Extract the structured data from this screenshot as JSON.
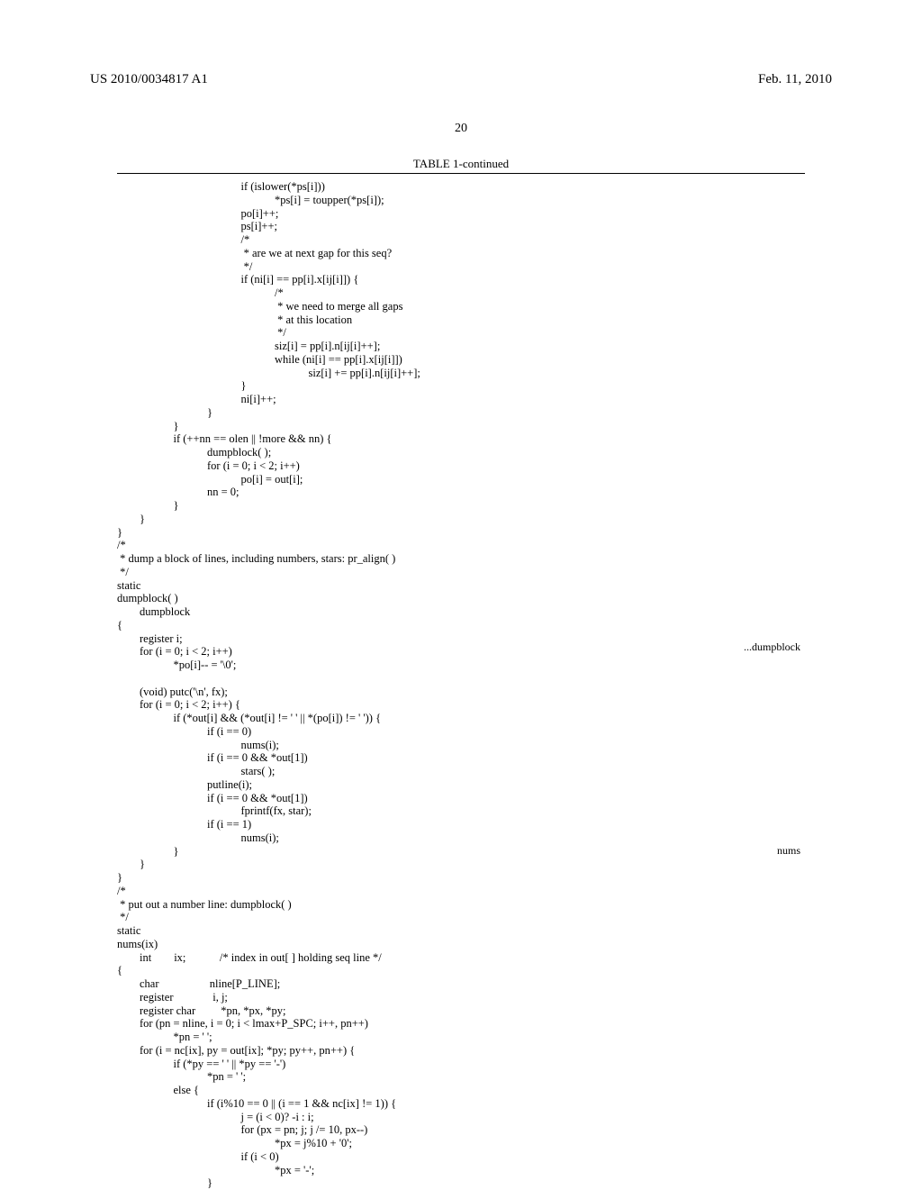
{
  "header": {
    "pub_number": "US 2010/0034817 A1",
    "pub_date": "Feb. 11, 2010"
  },
  "page_number": "20",
  "table_caption": "TABLE 1-continued",
  "side_labels": {
    "dumpblock": "...dumpblock",
    "nums": "nums"
  },
  "code": "                                            if (islower(*ps[i]))\n                                                        *ps[i] = toupper(*ps[i]);\n                                            po[i]++;\n                                            ps[i]++;\n                                            /*\n                                             * are we at next gap for this seq?\n                                             */\n                                            if (ni[i] == pp[i].x[ij[i]]) {\n                                                        /*\n                                                         * we need to merge all gaps\n                                                         * at this location\n                                                         */\n                                                        siz[i] = pp[i].n[ij[i]++];\n                                                        while (ni[i] == pp[i].x[ij[i]])\n                                                                    siz[i] += pp[i].n[ij[i]++];\n                                            }\n                                            ni[i]++;\n                                }\n                    }\n                    if (++nn == olen || !more && nn) {\n                                dumpblock( );\n                                for (i = 0; i < 2; i++)\n                                            po[i] = out[i];\n                                nn = 0;\n                    }\n        }\n}\n/*\n * dump a block of lines, including numbers, stars: pr_align( )\n */\nstatic\ndumpblock( )\n        dumpblock\n{\n        register i;\n        for (i = 0; i < 2; i++)\n                    *po[i]-- = '\\0';\n\n        (void) putc('\\n', fx);\n        for (i = 0; i < 2; i++) {\n                    if (*out[i] && (*out[i] != ' ' || *(po[i]) != ' ')) {\n                                if (i == 0)\n                                            nums(i);\n                                if (i == 0 && *out[1])\n                                            stars( );\n                                putline(i);\n                                if (i == 0 && *out[1])\n                                            fprintf(fx, star);\n                                if (i == 1)\n                                            nums(i);\n                    }\n        }\n}\n/*\n * put out a number line: dumpblock( )\n */\nstatic\nnums(ix)\n        int        ix;            /* index in out[ ] holding seq line */\n{\n        char                  nline[P_LINE];\n        register              i, j;\n        register char         *pn, *px, *py;\n        for (pn = nline, i = 0; i < lmax+P_SPC; i++, pn++)\n                    *pn = ' ';\n        for (i = nc[ix], py = out[ix]; *py; py++, pn++) {\n                    if (*py == ' ' || *py == '-')\n                                *pn = ' ';\n                    else {\n                                if (i%10 == 0 || (i == 1 && nc[ix] != 1)) {\n                                            j = (i < 0)? -i : i;\n                                            for (px = pn; j; j /= 10, px--)\n                                                        *px = j%10 + '0';\n                                            if (i < 0)\n                                                        *px = '-';\n                                }"
}
